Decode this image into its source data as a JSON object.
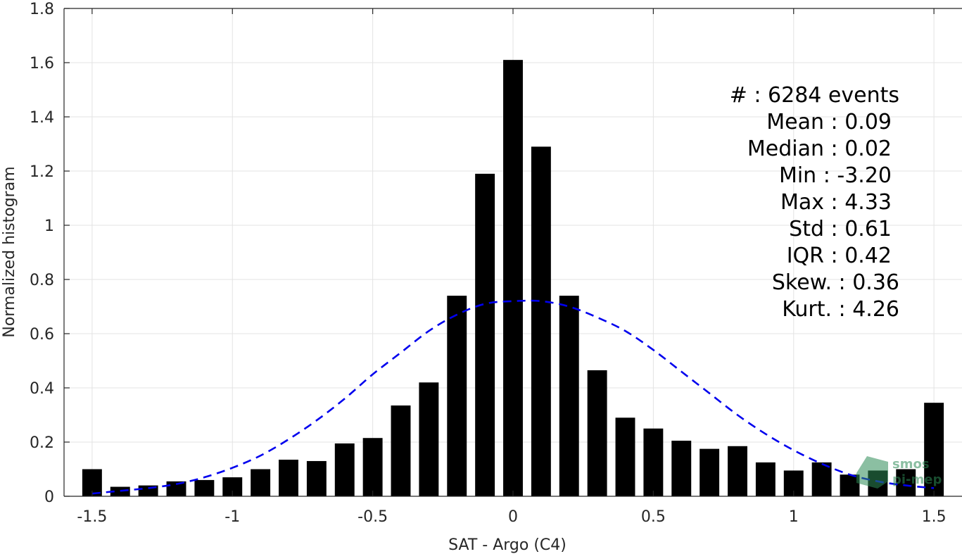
{
  "chart_data": {
    "type": "bar",
    "xlabel": "SAT - Argo (C4)",
    "ylabel": "Normalized histogram",
    "xlim": [
      -1.6,
      1.6
    ],
    "ylim": [
      0,
      1.8
    ],
    "grid": true,
    "xticks": [
      -1.5,
      -1,
      -0.5,
      0,
      0.5,
      1,
      1.5
    ],
    "xtick_labels": [
      "-1.5",
      "-1",
      "-0.5",
      "0",
      "0.5",
      "1",
      "1.5"
    ],
    "yticks": [
      0,
      0.2,
      0.4,
      0.6,
      0.8,
      1,
      1.2,
      1.4,
      1.6,
      1.8
    ],
    "ytick_labels": [
      "0",
      "0.2",
      "0.4",
      "0.6",
      "0.8",
      "1",
      "1.2",
      "1.4",
      "1.6",
      "1.8"
    ],
    "bar_color": "#000000",
    "bin_width": 0.1,
    "bars": {
      "x": [
        -1.5,
        -1.4,
        -1.3,
        -1.2,
        -1.1,
        -1.0,
        -0.9,
        -0.8,
        -0.7,
        -0.6,
        -0.5,
        -0.4,
        -0.3,
        -0.2,
        -0.1,
        0.0,
        0.1,
        0.2,
        0.3,
        0.4,
        0.5,
        0.6,
        0.7,
        0.8,
        0.9,
        1.0,
        1.1,
        1.2,
        1.3,
        1.4,
        1.5
      ],
      "values": [
        0.1,
        0.035,
        0.04,
        0.055,
        0.06,
        0.07,
        0.1,
        0.135,
        0.13,
        0.195,
        0.215,
        0.335,
        0.42,
        0.74,
        1.19,
        1.61,
        1.29,
        0.74,
        0.465,
        0.29,
        0.25,
        0.205,
        0.175,
        0.185,
        0.125,
        0.095,
        0.125,
        0.08,
        0.095,
        0.1,
        0.345
      ]
    },
    "fit_curve": {
      "style": "dashed",
      "color": "#0000ee",
      "x": [
        -1.5,
        -1.4,
        -1.3,
        -1.2,
        -1.1,
        -1.0,
        -0.9,
        -0.8,
        -0.7,
        -0.6,
        -0.5,
        -0.4,
        -0.3,
        -0.2,
        -0.1,
        0.0,
        0.1,
        0.2,
        0.3,
        0.4,
        0.5,
        0.6,
        0.7,
        0.8,
        0.9,
        1.0,
        1.1,
        1.2,
        1.3,
        1.4,
        1.5
      ],
      "y": [
        0.01,
        0.02,
        0.03,
        0.045,
        0.07,
        0.105,
        0.15,
        0.21,
        0.28,
        0.36,
        0.45,
        0.53,
        0.61,
        0.67,
        0.71,
        0.72,
        0.72,
        0.7,
        0.66,
        0.61,
        0.54,
        0.46,
        0.38,
        0.3,
        0.23,
        0.17,
        0.12,
        0.08,
        0.055,
        0.04,
        0.03
      ]
    },
    "annotations": [
      "#  : 6284 events",
      "Mean : 0.09",
      "Median : 0.02",
      "Min : -3.20",
      "Max : 4.33",
      "Std : 0.61",
      "IQR : 0.42",
      "Skew. : 0.36",
      "Kurt. : 4.26"
    ],
    "logo": {
      "line1": "smos",
      "line2": "pi-mep",
      "color": "#2e8b57"
    }
  }
}
